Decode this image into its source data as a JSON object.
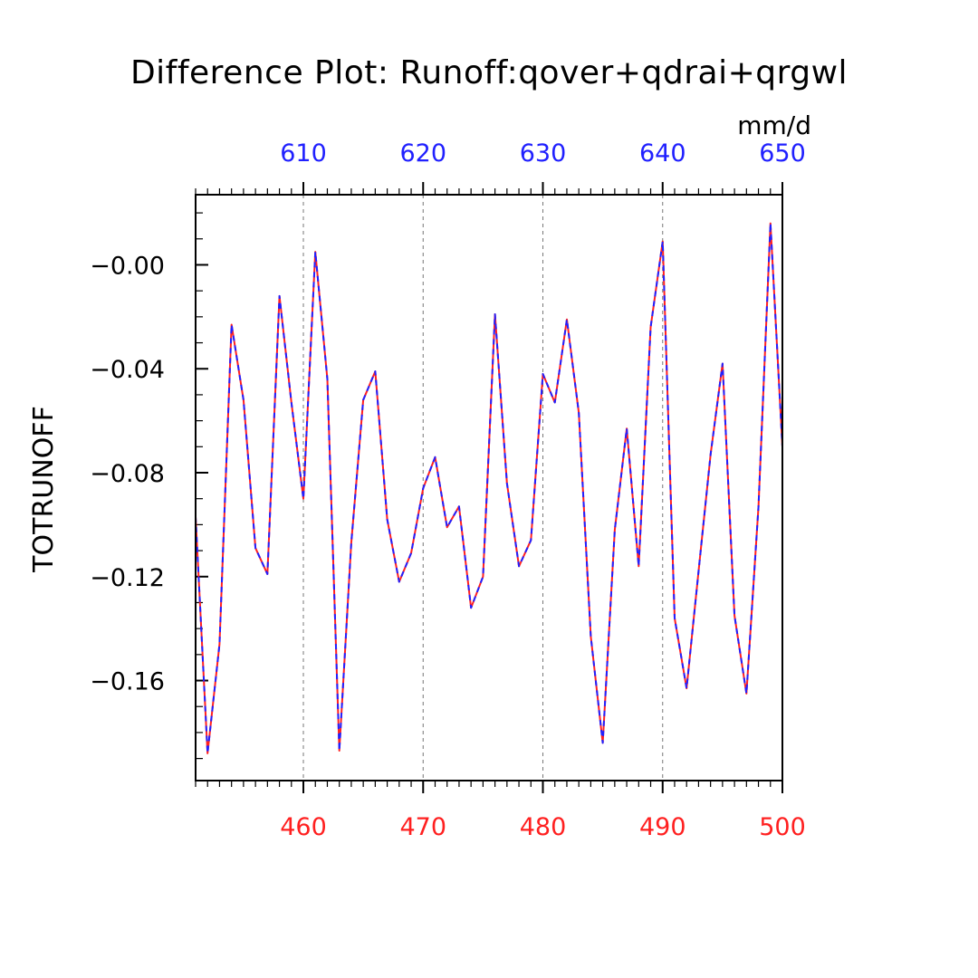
{
  "chart_data": {
    "type": "line",
    "title": "Difference Plot: Runoff:qover+qdrai+qrgwl",
    "units": "mm/d",
    "ylabel": "TOTRUNOFF",
    "xlim": [
      451,
      500
    ],
    "ylim": [
      -0.1985,
      0.027
    ],
    "x_bottom_ticks": [
      "460",
      "470",
      "480",
      "490",
      "500"
    ],
    "x_top_ticks": [
      "610",
      "620",
      "630",
      "640",
      "650"
    ],
    "x_top_offset": 150,
    "y_ticks": [
      "−0.00",
      "−0.04",
      "−0.08",
      "−0.12",
      "−0.16"
    ],
    "grid_x": true,
    "grid_y": false,
    "colors": {
      "bottom_axis": "#ff2020",
      "top_axis": "#2020ff",
      "frame": "#000000",
      "grid": "#777777"
    },
    "series": [
      {
        "color": "#ff2020",
        "line_style": "solid",
        "x": [
          451,
          452,
          453,
          454,
          455,
          456,
          457,
          458,
          459,
          460,
          461,
          462,
          463,
          464,
          465,
          466,
          467,
          468,
          469,
          470,
          471,
          472,
          473,
          474,
          475,
          476,
          477,
          478,
          479,
          480,
          481,
          482,
          483,
          484,
          485,
          486,
          487,
          488,
          489,
          490,
          491,
          492,
          493,
          494,
          495,
          496,
          497,
          498,
          499,
          500
        ],
        "values": [
          -0.097,
          -0.188,
          -0.146,
          -0.023,
          -0.052,
          -0.109,
          -0.119,
          -0.012,
          -0.053,
          -0.09,
          0.005,
          -0.044,
          -0.187,
          -0.107,
          -0.052,
          -0.041,
          -0.098,
          -0.122,
          -0.111,
          -0.086,
          -0.074,
          -0.101,
          -0.093,
          -0.132,
          -0.12,
          -0.019,
          -0.084,
          -0.116,
          -0.106,
          -0.042,
          -0.053,
          -0.021,
          -0.057,
          -0.143,
          -0.184,
          -0.102,
          -0.063,
          -0.116,
          -0.024,
          0.009,
          -0.136,
          -0.163,
          -0.118,
          -0.073,
          -0.038,
          -0.135,
          -0.165,
          -0.093,
          0.016,
          -0.07
        ]
      },
      {
        "color": "#2020ff",
        "line_style": "dashed",
        "x": [
          451,
          452,
          453,
          454,
          455,
          456,
          457,
          458,
          459,
          460,
          461,
          462,
          463,
          464,
          465,
          466,
          467,
          468,
          469,
          470,
          471,
          472,
          473,
          474,
          475,
          476,
          477,
          478,
          479,
          480,
          481,
          482,
          483,
          484,
          485,
          486,
          487,
          488,
          489,
          490,
          491,
          492,
          493,
          494,
          495,
          496,
          497,
          498,
          499,
          500
        ],
        "values": [
          -0.097,
          -0.188,
          -0.146,
          -0.023,
          -0.052,
          -0.109,
          -0.119,
          -0.012,
          -0.053,
          -0.09,
          0.005,
          -0.044,
          -0.187,
          -0.107,
          -0.052,
          -0.041,
          -0.098,
          -0.122,
          -0.111,
          -0.086,
          -0.074,
          -0.101,
          -0.093,
          -0.132,
          -0.12,
          -0.019,
          -0.084,
          -0.116,
          -0.106,
          -0.042,
          -0.053,
          -0.021,
          -0.057,
          -0.143,
          -0.184,
          -0.102,
          -0.063,
          -0.116,
          -0.024,
          0.009,
          -0.136,
          -0.163,
          -0.118,
          -0.073,
          -0.038,
          -0.135,
          -0.165,
          -0.093,
          0.016,
          -0.07
        ]
      }
    ]
  }
}
